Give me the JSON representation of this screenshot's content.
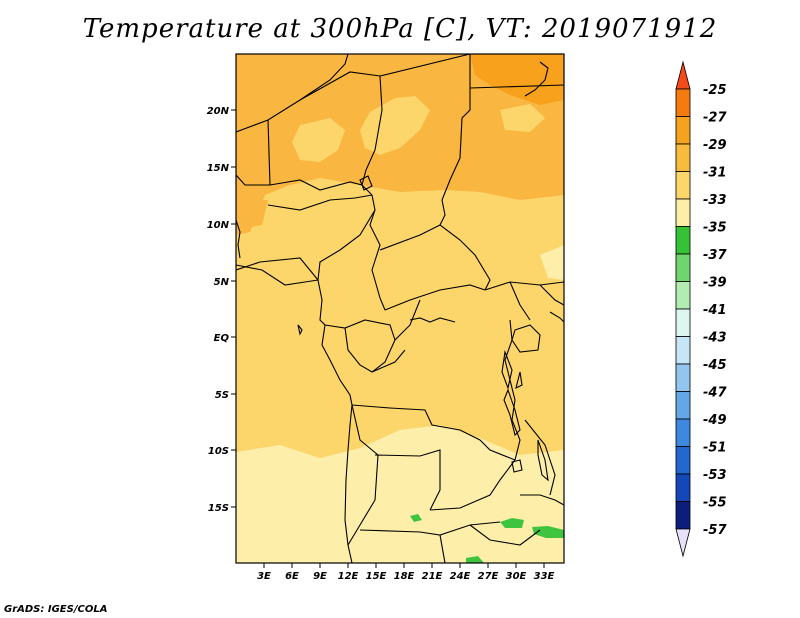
{
  "title": "Temperature at 300hPa [C], VT: 2019071912",
  "credit": "GrADS: IGES/COLA",
  "map": {
    "lon_labels": [
      "3E",
      "6E",
      "9E",
      "12E",
      "15E",
      "18E",
      "21E",
      "24E",
      "27E",
      "30E",
      "33E"
    ],
    "lat_labels": [
      "20N",
      "15N",
      "10N",
      "5N",
      "EQ",
      "5S",
      "10S",
      "15S"
    ],
    "lon_range": [
      0.3,
      35.4
    ],
    "lat_range": [
      -19.6,
      24.7
    ]
  },
  "colorbar": {
    "labels": [
      "-25",
      "-27",
      "-29",
      "-31",
      "-33",
      "-35",
      "-37",
      "-39",
      "-41",
      "-43",
      "-45",
      "-47",
      "-49",
      "-51",
      "-53",
      "-55",
      "-57"
    ],
    "colors": [
      "#f54a1a",
      "#f57a10",
      "#f5a21e",
      "#f7bb3d",
      "#fcd66a",
      "#fdeea8",
      "#36c236",
      "#6fd66f",
      "#b2ecb2",
      "#ddf6f0",
      "#c6e6f8",
      "#93c6ee",
      "#63a7e6",
      "#3e89df",
      "#2268cf",
      "#1448b8",
      "#0a1e7a",
      "#e6e0f8"
    ]
  },
  "fields": {
    "zone_colors": {
      "c27": "#f7a11d",
      "c29": "#f9b640",
      "c31": "#fcd66b",
      "c33": "#fdeea9",
      "c37": "#3fc43f"
    }
  }
}
